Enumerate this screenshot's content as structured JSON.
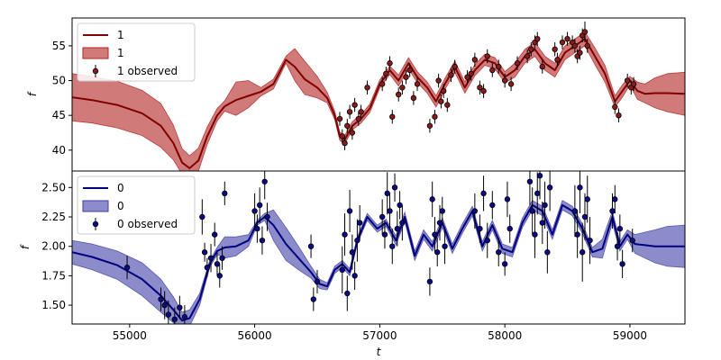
{
  "figure": {
    "xlabel": "t"
  },
  "chart_data": [
    {
      "type": "line",
      "ylabel": "f",
      "xlim": [
        54540,
        59440
      ],
      "ylim": [
        37,
        59
      ],
      "yticks": [
        40,
        45,
        50,
        55
      ],
      "xticks": [],
      "colors": {
        "line": "#800000",
        "band": "#b22222",
        "points": "#8b1a1a"
      },
      "legend": {
        "location": "upper-left",
        "entries": [
          "1",
          "1",
          "1 observed"
        ]
      },
      "series": [
        {
          "kind": "prediction",
          "x": [
            54540,
            54700,
            54900,
            55100,
            55250,
            55350,
            55420,
            55480,
            55550,
            55620,
            55700,
            55760,
            55850,
            55950,
            56050,
            56150,
            56250,
            56320,
            56400,
            56500,
            56580,
            56640,
            56680,
            56720,
            56780,
            56850,
            56920,
            57000,
            57080,
            57150,
            57230,
            57300,
            57380,
            57450,
            57520,
            57600,
            57680,
            57760,
            57840,
            57920,
            58000,
            58080,
            58160,
            58240,
            58320,
            58400,
            58480,
            58560,
            58640,
            58720,
            58800,
            58880,
            58940,
            59000,
            59060,
            59120,
            59200,
            59300,
            59440
          ],
          "y": [
            47.6,
            47.2,
            46.5,
            45.3,
            43.5,
            41.0,
            38.2,
            37.4,
            38.5,
            42.0,
            45.0,
            46.3,
            47.2,
            47.8,
            48.4,
            49.5,
            53.0,
            52.0,
            50.2,
            49.0,
            47.5,
            45.0,
            42.0,
            41.5,
            43.5,
            44.5,
            46.0,
            49.5,
            51.5,
            50.0,
            52.5,
            50.5,
            49.0,
            47.0,
            49.5,
            52.0,
            49.0,
            51.5,
            53.0,
            52.5,
            50.5,
            51.5,
            53.5,
            54.5,
            52.5,
            51.5,
            54.0,
            55.0,
            56.0,
            53.5,
            51.0,
            47.0,
            48.5,
            50.0,
            48.5,
            48.1,
            48.2,
            48.2,
            48.1
          ],
          "lower": [
            44.2,
            43.9,
            43.2,
            42.1,
            40.4,
            38.6,
            36.5,
            35.9,
            37.0,
            40.8,
            44.2,
            45.6,
            45.0,
            46.1,
            47.8,
            48.8,
            52.5,
            50.0,
            48.0,
            47.5,
            46.8,
            44.4,
            41.4,
            40.9,
            42.9,
            43.9,
            45.4,
            48.9,
            50.9,
            49.2,
            51.7,
            49.7,
            48.2,
            46.2,
            48.7,
            51.2,
            48.2,
            50.7,
            52.2,
            51.7,
            49.7,
            50.5,
            52.5,
            53.5,
            51.5,
            50.5,
            53.0,
            54.0,
            55.0,
            52.3,
            49.8,
            46.2,
            47.6,
            49.4,
            47.3,
            46.8,
            46.1,
            45.5,
            45.0
          ],
          "upper": [
            51.0,
            50.6,
            49.9,
            48.6,
            46.7,
            43.6,
            40.2,
            39.2,
            40.3,
            43.3,
            46.0,
            47.1,
            49.8,
            50.0,
            49.0,
            50.2,
            53.5,
            54.6,
            52.8,
            50.6,
            48.3,
            45.6,
            42.6,
            42.1,
            44.1,
            45.1,
            46.6,
            50.1,
            52.1,
            50.8,
            53.3,
            51.3,
            49.8,
            47.8,
            50.3,
            52.8,
            49.8,
            52.3,
            53.8,
            53.3,
            51.3,
            52.5,
            54.5,
            55.5,
            53.5,
            52.5,
            55.0,
            56.0,
            57.0,
            54.7,
            52.2,
            47.8,
            49.4,
            50.6,
            49.8,
            49.5,
            50.4,
            51.0,
            51.2
          ]
        },
        {
          "kind": "observed",
          "x": [
            56680,
            56700,
            56720,
            56740,
            56760,
            56780,
            56800,
            56830,
            56850,
            56900,
            57020,
            57050,
            57080,
            57100,
            57150,
            57180,
            57210,
            57240,
            57270,
            57300,
            57400,
            57440,
            57470,
            57490,
            57510,
            57540,
            57570,
            57600,
            57700,
            57730,
            57760,
            57800,
            57830,
            57860,
            57900,
            57950,
            58000,
            58050,
            58100,
            58180,
            58210,
            58240,
            58260,
            58300,
            58400,
            58420,
            58460,
            58500,
            58540,
            58560,
            58580,
            58600,
            58620,
            58640,
            58660,
            58880,
            58910,
            58980,
            59010,
            59030
          ],
          "y": [
            44.5,
            42.0,
            41.0,
            43.5,
            45.5,
            42.5,
            46.5,
            44.5,
            45.5,
            49.0,
            49.5,
            51.0,
            52.5,
            44.8,
            48.0,
            49.0,
            50.5,
            51.5,
            47.5,
            49.5,
            43.5,
            44.8,
            50.0,
            47.0,
            48.5,
            46.5,
            50.8,
            52.0,
            50.5,
            51.0,
            53.0,
            49.0,
            48.5,
            53.5,
            51.5,
            52.0,
            50.0,
            49.5,
            52.5,
            53.5,
            54.5,
            55.5,
            56.0,
            52.0,
            54.5,
            53.0,
            55.5,
            56.0,
            55.5,
            55.0,
            53.5,
            54.0,
            56.5,
            57.0,
            55.0,
            46.2,
            45.0,
            50.0,
            49.0,
            49.5
          ],
          "err": [
            1.0,
            1.0,
            1.0,
            1.0,
            1.0,
            1.0,
            1.0,
            1.0,
            1.0,
            1.0,
            1.0,
            1.0,
            1.0,
            1.0,
            1.0,
            1.0,
            1.0,
            1.0,
            1.0,
            1.0,
            1.0,
            1.0,
            1.0,
            1.0,
            1.0,
            1.0,
            1.0,
            1.0,
            1.0,
            1.0,
            1.0,
            1.0,
            1.0,
            1.0,
            1.0,
            1.0,
            1.0,
            1.0,
            1.0,
            1.0,
            1.0,
            1.0,
            1.0,
            1.0,
            1.0,
            1.0,
            1.0,
            1.0,
            1.0,
            1.0,
            1.0,
            1.0,
            1.0,
            1.5,
            1.0,
            1.0,
            1.0,
            1.0,
            1.0,
            1.0
          ]
        }
      ]
    },
    {
      "type": "line",
      "ylabel": "f",
      "xlim": [
        54540,
        59440
      ],
      "ylim": [
        1.34,
        2.64
      ],
      "yticks": [
        1.5,
        1.75,
        2.0,
        2.25,
        2.5
      ],
      "ytick_labels": [
        "1.50",
        "1.75",
        "2.00",
        "2.25",
        "2.50"
      ],
      "xticks": [
        55000,
        56000,
        57000,
        58000,
        59000
      ],
      "colors": {
        "line": "#000080",
        "band": "#3f3fa6",
        "points": "#0a0a8a",
        "errorbars": "#000000"
      },
      "legend": {
        "location": "upper-left",
        "entries": [
          "0",
          "0",
          "0 observed"
        ]
      },
      "series": [
        {
          "kind": "prediction",
          "x": [
            54540,
            54700,
            54900,
            55100,
            55250,
            55350,
            55420,
            55480,
            55560,
            55640,
            55700,
            55760,
            55850,
            55950,
            56020,
            56080,
            56150,
            56250,
            56350,
            56450,
            56520,
            56580,
            56640,
            56700,
            56760,
            56820,
            56900,
            56980,
            57050,
            57130,
            57200,
            57280,
            57350,
            57420,
            57500,
            57580,
            57660,
            57740,
            57820,
            57900,
            57980,
            58060,
            58140,
            58220,
            58300,
            58380,
            58460,
            58540,
            58620,
            58700,
            58780,
            58860,
            58920,
            58980,
            59040,
            59120,
            59200,
            59300,
            59440
          ],
          "y": [
            1.95,
            1.91,
            1.84,
            1.72,
            1.58,
            1.46,
            1.37,
            1.39,
            1.55,
            1.85,
            1.96,
            1.99,
            2.0,
            2.05,
            2.2,
            2.25,
            2.18,
            2.02,
            1.9,
            1.78,
            1.68,
            1.66,
            1.8,
            1.85,
            1.78,
            2.05,
            2.25,
            2.15,
            2.2,
            2.05,
            2.25,
            1.92,
            2.1,
            2.0,
            2.2,
            1.98,
            2.15,
            2.3,
            2.0,
            2.18,
            1.98,
            1.95,
            2.2,
            2.35,
            2.3,
            2.1,
            2.35,
            2.3,
            2.15,
            1.95,
            1.98,
            2.25,
            2.0,
            2.1,
            2.02,
            2.01,
            2.0,
            2.0,
            2.0
          ],
          "lower": [
            1.85,
            1.8,
            1.72,
            1.58,
            1.44,
            1.35,
            1.3,
            1.32,
            1.5,
            1.82,
            1.93,
            1.9,
            1.92,
            2.0,
            2.18,
            2.22,
            2.05,
            1.88,
            1.8,
            1.73,
            1.64,
            1.63,
            1.77,
            1.82,
            1.75,
            2.02,
            2.22,
            2.12,
            2.17,
            2.01,
            2.21,
            1.88,
            2.06,
            1.96,
            2.16,
            1.94,
            2.11,
            2.26,
            1.96,
            2.14,
            1.94,
            1.91,
            2.16,
            2.31,
            2.26,
            2.06,
            2.31,
            2.26,
            2.11,
            1.91,
            1.9,
            2.2,
            1.96,
            2.06,
            1.94,
            1.9,
            1.86,
            1.83,
            1.82
          ],
          "upper": [
            2.05,
            2.02,
            1.96,
            1.86,
            1.72,
            1.57,
            1.44,
            1.46,
            1.6,
            1.88,
            1.99,
            2.08,
            2.08,
            2.1,
            2.22,
            2.28,
            2.31,
            2.16,
            2.0,
            1.83,
            1.72,
            1.69,
            1.83,
            1.88,
            1.81,
            2.08,
            2.28,
            2.18,
            2.23,
            2.09,
            2.29,
            1.96,
            2.14,
            2.04,
            2.24,
            2.02,
            2.19,
            2.34,
            2.04,
            2.22,
            2.02,
            1.99,
            2.24,
            2.39,
            2.34,
            2.14,
            2.39,
            2.34,
            2.19,
            1.99,
            2.06,
            2.3,
            2.04,
            2.14,
            2.1,
            2.12,
            2.14,
            2.17,
            2.18
          ]
        },
        {
          "kind": "observed",
          "x": [
            54980,
            55250,
            55280,
            55310,
            55360,
            55400,
            55440,
            55580,
            55600,
            55620,
            55650,
            55680,
            55700,
            55720,
            55740,
            55760,
            56000,
            56020,
            56040,
            56060,
            56080,
            56100,
            56450,
            56470,
            56500,
            56700,
            56720,
            56740,
            56760,
            56780,
            56800,
            56820,
            56840,
            57020,
            57040,
            57060,
            57080,
            57100,
            57120,
            57140,
            57160,
            57180,
            57400,
            57420,
            57440,
            57460,
            57480,
            57500,
            57520,
            57760,
            57800,
            57830,
            57860,
            57900,
            57950,
            58000,
            58020,
            58040,
            58200,
            58220,
            58240,
            58260,
            58280,
            58300,
            58320,
            58340,
            58360,
            58560,
            58580,
            58600,
            58620,
            58640,
            58660,
            58680,
            58860,
            58880,
            58900,
            58920,
            58940,
            59020
          ],
          "y": [
            1.82,
            1.55,
            1.5,
            1.42,
            1.38,
            1.48,
            1.4,
            2.25,
            1.95,
            1.82,
            1.9,
            2.1,
            1.85,
            1.75,
            1.9,
            2.45,
            2.3,
            2.15,
            2.35,
            2.05,
            2.55,
            2.25,
            2.0,
            1.55,
            1.7,
            1.8,
            2.1,
            1.6,
            2.3,
            1.95,
            1.75,
            2.05,
            2.2,
            2.25,
            2.1,
            2.45,
            2.3,
            2.0,
            2.5,
            2.15,
            2.35,
            2.2,
            1.7,
            2.4,
            2.1,
            1.95,
            2.2,
            2.3,
            2.0,
            2.3,
            2.15,
            2.45,
            2.05,
            2.35,
            1.95,
            1.85,
            2.4,
            2.15,
            2.55,
            2.3,
            2.1,
            2.45,
            2.6,
            2.2,
            2.35,
            1.95,
            2.5,
            2.3,
            2.1,
            2.5,
            1.95,
            2.25,
            2.4,
            2.05,
            2.3,
            2.4,
            2.0,
            2.15,
            1.85,
            2.05
          ],
          "err": [
            0.1,
            0.1,
            0.12,
            0.12,
            0.1,
            0.1,
            0.1,
            0.15,
            0.08,
            0.08,
            0.12,
            0.1,
            0.1,
            0.1,
            0.1,
            0.1,
            0.15,
            0.12,
            0.15,
            0.12,
            0.15,
            0.12,
            0.1,
            0.1,
            0.1,
            0.2,
            0.18,
            0.15,
            0.18,
            0.15,
            0.12,
            0.18,
            0.15,
            0.15,
            0.12,
            0.18,
            0.15,
            0.15,
            0.12,
            0.15,
            0.12,
            0.15,
            0.12,
            0.15,
            0.15,
            0.12,
            0.15,
            0.12,
            0.15,
            0.15,
            0.12,
            0.15,
            0.15,
            0.12,
            0.12,
            0.1,
            0.15,
            0.12,
            0.2,
            0.2,
            0.2,
            0.18,
            0.2,
            0.18,
            0.2,
            0.18,
            0.2,
            0.22,
            0.2,
            0.22,
            0.25,
            0.2,
            0.2,
            0.2,
            0.15,
            0.12,
            0.12,
            0.12,
            0.12,
            0.1
          ]
        }
      ]
    }
  ]
}
